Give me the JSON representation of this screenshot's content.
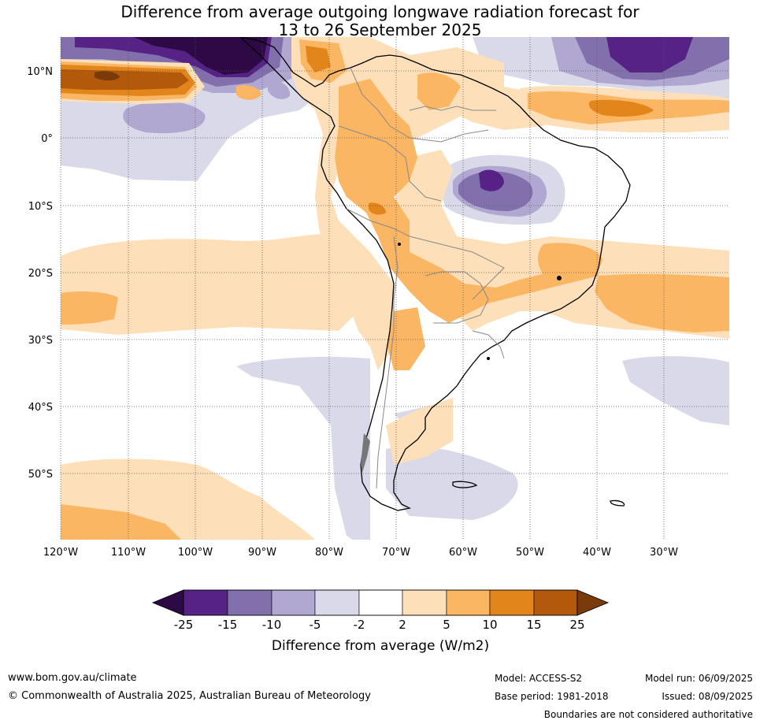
{
  "title": {
    "line1": "Difference from average outgoing longwave radiation forecast for",
    "line2": "13 to 26 September 2025"
  },
  "map": {
    "region": "South America",
    "lat_ticks": [
      "10°N",
      "0°",
      "10°S",
      "20°S",
      "30°S",
      "40°S",
      "50°S"
    ],
    "lon_ticks": [
      "120°W",
      "110°W",
      "100°W",
      "90°W",
      "80°W",
      "70°W",
      "60°W",
      "50°W",
      "40°W",
      "30°W"
    ],
    "gridlines": true
  },
  "colorbar": {
    "ticks": [
      "-25",
      "-15",
      "-10",
      "-5",
      "-2",
      "2",
      "5",
      "10",
      "15",
      "25"
    ],
    "label": "Difference from average (W/m2)",
    "under_color": "#2d0a45",
    "over_color": "#7a3a0a",
    "colors": [
      "#562285",
      "#8270ad",
      "#b1a8d1",
      "#d9d9ea",
      "#ffffff",
      "#fde0b9",
      "#fbb664",
      "#e2851a",
      "#b3590c"
    ]
  },
  "footer": {
    "website": "www.bom.gov.au/climate",
    "copyright": "© Commonwealth of Australia 2025, Australian Bureau of Meteorology",
    "model": "Model: ACCESS-S2",
    "base_period": "Base period: 1981-2018",
    "model_run": "Model run: 06/09/2025",
    "issued": "Issued: 08/09/2025",
    "disclaimer": "Boundaries are not considered authoritative"
  }
}
